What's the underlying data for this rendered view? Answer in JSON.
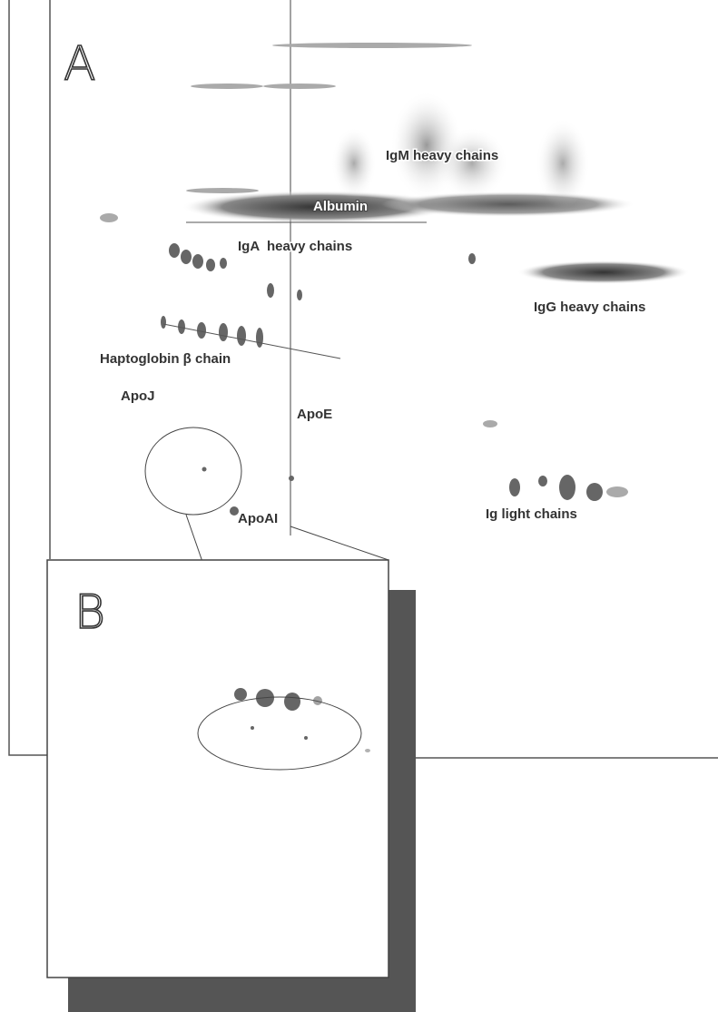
{
  "panels": {
    "a": {
      "label": "A",
      "annotations": [
        "IgM heavy chains",
        "Albumin",
        "IgA  heavy chains",
        "IgG heavy chains",
        "Haptoglobin β chain",
        "ApoJ",
        "ApoE",
        "ApoAI",
        "Ig light chains"
      ]
    },
    "b": {
      "label": "B"
    }
  }
}
